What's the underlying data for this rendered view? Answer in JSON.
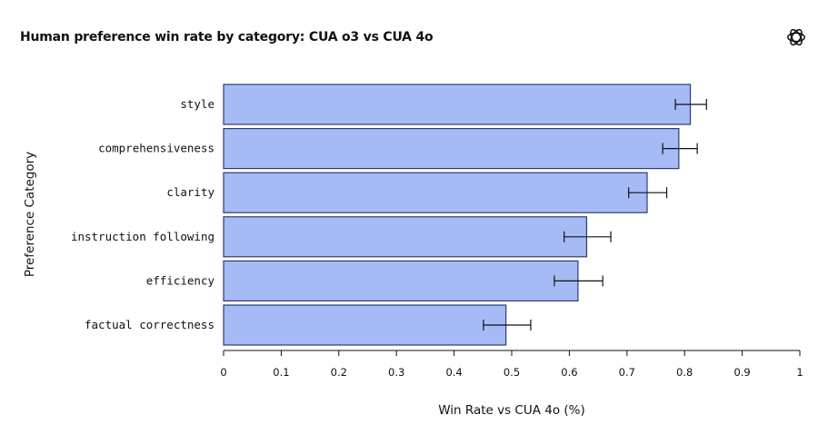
{
  "header": {
    "title": "Human preference win rate by category: CUA o3 vs CUA 4o",
    "logo_icon": "openai-logo-icon"
  },
  "colors": {
    "bar_fill": "#a6bbf6",
    "bar_stroke": "#2d3c6e",
    "axis": "#111111",
    "error_bar": "#111111"
  },
  "chart_data": {
    "type": "bar",
    "orientation": "horizontal",
    "title": "Human preference win rate by category: CUA o3 vs CUA 4o",
    "xlabel": "Win Rate vs CUA 4o (%)",
    "ylabel": "Preference Category",
    "xlim": [
      0,
      1
    ],
    "xticks": [
      0,
      0.1,
      0.2,
      0.3,
      0.4,
      0.5,
      0.6,
      0.7,
      0.8,
      0.9,
      1
    ],
    "xtick_labels": [
      "0",
      "0.1",
      "0.2",
      "0.3",
      "0.4",
      "0.5",
      "0.6",
      "0.7",
      "0.8",
      "0.9",
      "1"
    ],
    "grid": false,
    "categories": [
      "style",
      "comprehensiveness",
      "clarity",
      "instruction following",
      "efficiency",
      "factual correctness"
    ],
    "values": [
      0.81,
      0.79,
      0.735,
      0.63,
      0.615,
      0.49
    ],
    "error_low": [
      0.784,
      0.762,
      0.703,
      0.591,
      0.574,
      0.451
    ],
    "error_high": [
      0.838,
      0.822,
      0.769,
      0.672,
      0.658,
      0.533
    ]
  }
}
